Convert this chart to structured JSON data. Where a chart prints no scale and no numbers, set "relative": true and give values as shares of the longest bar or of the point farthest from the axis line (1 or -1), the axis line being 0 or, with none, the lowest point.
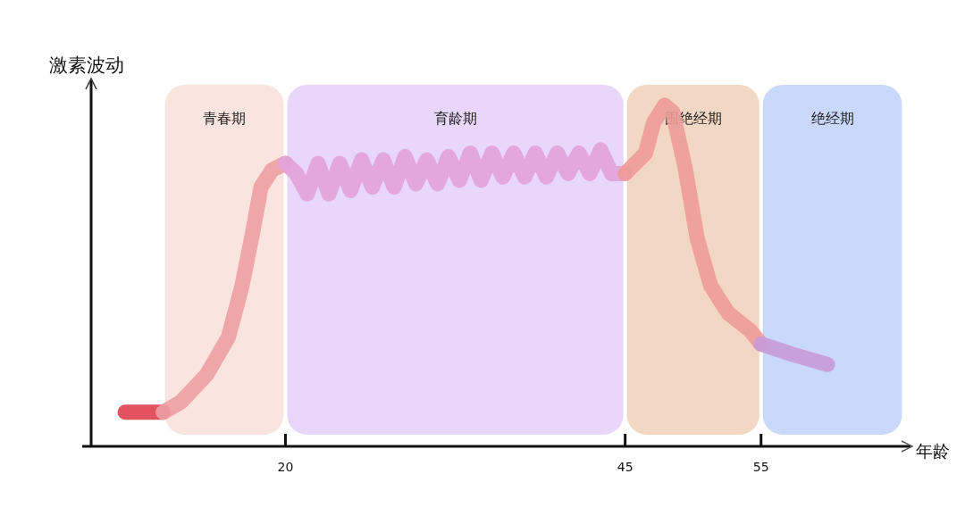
{
  "chart_data": {
    "type": "line",
    "xlabel": "年龄",
    "ylabel": "激素波动",
    "relative": true,
    "tick_labels": "x",
    "xlim": [
      5.7,
      66
    ],
    "xticks": [
      20,
      45,
      55
    ],
    "series": [
      {
        "color": "#e0404e",
        "x": [
          8.2,
          9.5,
          11.0
        ],
        "values": [
          0.1,
          0.1,
          0.1
        ]
      },
      {
        "color": "#ec9ea2",
        "x": [
          11.0,
          12.3,
          14.2,
          15.8,
          16.8,
          17.6,
          18.2,
          19.0,
          20.0
        ],
        "values": [
          0.1,
          0.13,
          0.21,
          0.32,
          0.47,
          0.63,
          0.76,
          0.81,
          0.83
        ]
      },
      {
        "color": "#e2a2da",
        "x": [
          20.0,
          20.8,
          21.6,
          22.4,
          23.2,
          24.0,
          24.8,
          25.6,
          26.4,
          27.2,
          28.0,
          28.8,
          29.6,
          30.4,
          31.2,
          32.0,
          32.8,
          33.6,
          34.4,
          35.2,
          36.0,
          36.8,
          37.6,
          38.4,
          39.2,
          40.0,
          40.8,
          41.6,
          42.4,
          43.2,
          44.0,
          45.0
        ],
        "values": [
          0.83,
          0.8,
          0.74,
          0.83,
          0.74,
          0.83,
          0.75,
          0.84,
          0.76,
          0.84,
          0.76,
          0.85,
          0.77,
          0.84,
          0.77,
          0.85,
          0.78,
          0.86,
          0.78,
          0.86,
          0.79,
          0.86,
          0.79,
          0.86,
          0.79,
          0.86,
          0.8,
          0.86,
          0.8,
          0.87,
          0.8,
          0.8
        ]
      },
      {
        "color": "#ee9c98",
        "x": [
          45.0,
          46.5,
          47.1,
          47.9,
          48.5,
          49.4,
          50.3,
          51.3,
          52.6,
          54.2,
          55.0
        ],
        "values": [
          0.8,
          0.86,
          0.95,
          1.0,
          0.98,
          0.82,
          0.61,
          0.47,
          0.39,
          0.34,
          0.3
        ]
      },
      {
        "color": "#c89ad8",
        "x": [
          55.0,
          57.3,
          59.9
        ],
        "values": [
          0.3,
          0.27,
          0.24
        ]
      }
    ],
    "bands": [
      {
        "axis": "x",
        "from": 11,
        "to": 20,
        "label": "青春期",
        "color": "#f9e4e0"
      },
      {
        "axis": "x",
        "from": 20,
        "to": 45,
        "label": "育龄期",
        "color": "#e8d7fb"
      },
      {
        "axis": "x",
        "from": 45,
        "to": 55,
        "label": "围绝经期",
        "color": "#f3d7c5"
      },
      {
        "axis": "x",
        "from": 55,
        "to": 65.5,
        "label": "绝经期",
        "color": "#cad9fb"
      }
    ]
  }
}
